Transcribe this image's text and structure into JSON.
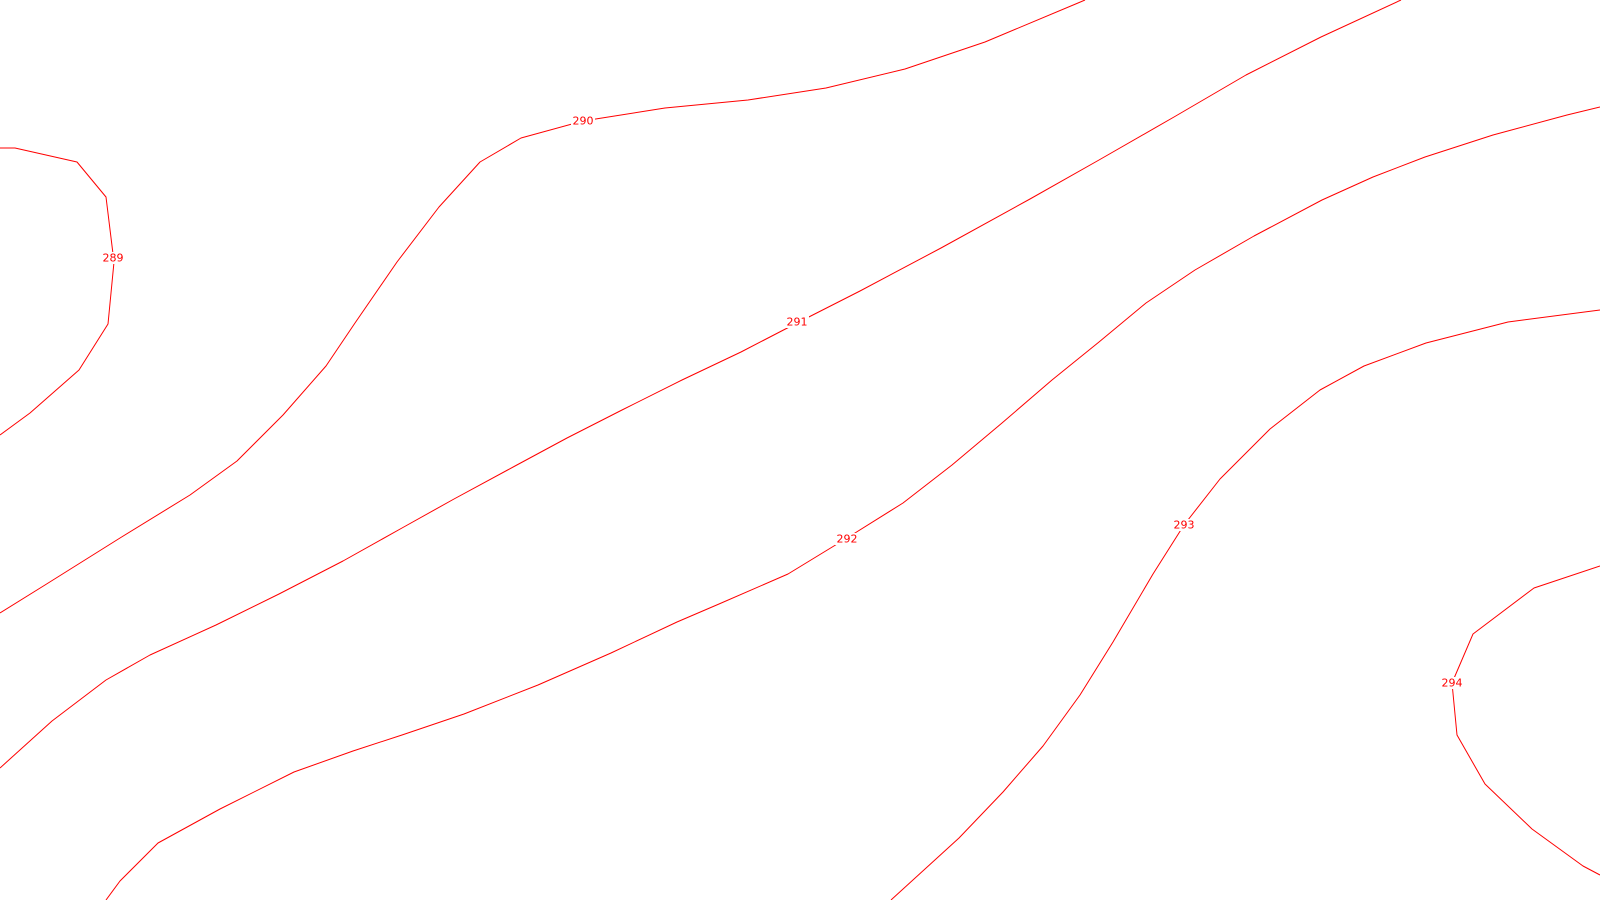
{
  "map": {
    "background": "#ffffff",
    "line_color": "#ff0000",
    "contours": [
      {
        "value": "289"
      },
      {
        "value": "290"
      },
      {
        "value": "291"
      },
      {
        "value": "292"
      },
      {
        "value": "293"
      },
      {
        "value": "294"
      }
    ]
  }
}
